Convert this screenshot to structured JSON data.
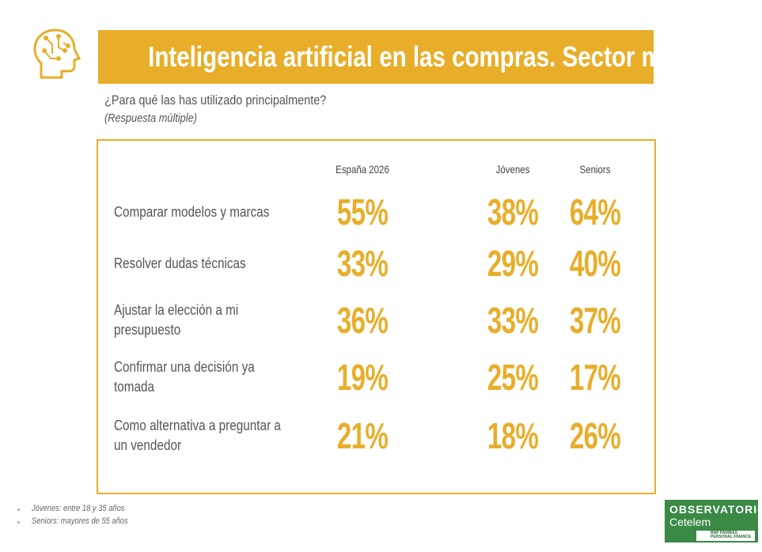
{
  "header": {
    "title": "Inteligencia artificial en las compras. Sector motor",
    "question": "¿Para qué las has utilizado principalmente?",
    "note": "(Respuesta múltiple)"
  },
  "table": {
    "columns": [
      "España 2026",
      "Jóvenes",
      "Seniors"
    ],
    "rows": [
      [
        "Comparar modelos y marcas",
        "55%",
        "38%",
        "64%"
      ],
      [
        "Resolver dudas técnicas",
        "33%",
        "29%",
        "40%"
      ],
      [
        "Ajustar la elección a mi presupuesto",
        "36%",
        "33%",
        "37%"
      ],
      [
        "Confirmar una decisión ya tomada",
        "19%",
        "25%",
        "17%"
      ],
      [
        "Como alternativa a preguntar a un vendedor",
        "21%",
        "18%",
        "26%"
      ]
    ]
  },
  "footnotes": [
    "Jóvenes: entre 18 y 35 años",
    "Seniors: mayores de 55 años"
  ],
  "logo": {
    "brand": "OBSERVATORIO",
    "sub": "Cetelem",
    "partner": "BNP PARIBAS PERSONAL FINANCE"
  }
}
